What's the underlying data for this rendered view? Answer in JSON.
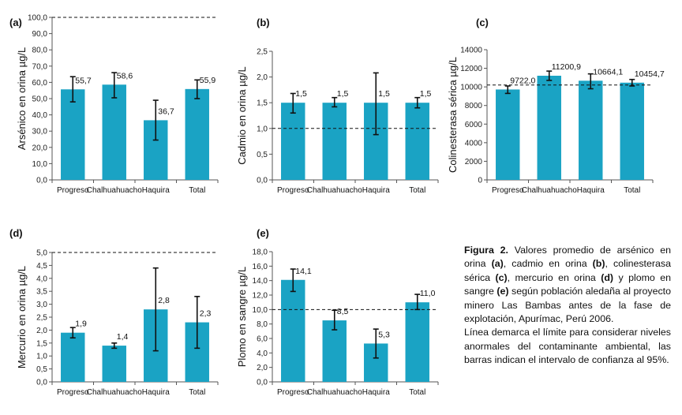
{
  "colors": {
    "bar": "#1aa3c4",
    "error": "#111111",
    "axis": "#555555",
    "limit": "#111111"
  },
  "chart_data": [
    {
      "id": "a",
      "panel_label": "(a)",
      "type": "bar",
      "categories": [
        "Progreso",
        "Chalhuahuacho",
        "Haquira",
        "Total"
      ],
      "values": [
        55.7,
        58.6,
        36.7,
        55.9
      ],
      "value_labels": [
        "55,7",
        "58,6",
        "36,7",
        "55,9"
      ],
      "err_low": [
        48.0,
        50.5,
        24.5,
        50.0
      ],
      "err_high": [
        63.5,
        66.0,
        49.0,
        61.5
      ],
      "limit": 100,
      "ylim": [
        0,
        100
      ],
      "yticks": [
        0,
        10,
        20,
        30,
        40,
        50,
        60,
        70,
        80,
        90,
        100
      ],
      "yticklabels": [
        "0,0",
        "10,0",
        "20,0",
        "30,0",
        "40,0",
        "50,0",
        "60,0",
        "70,0",
        "80,0",
        "90,0",
        "100,0"
      ],
      "ylabel": "Arsénico en orina µg/L",
      "xlabel": ""
    },
    {
      "id": "b",
      "panel_label": "(b)",
      "type": "bar",
      "categories": [
        "Progreso",
        "Chalhuahuacho",
        "Haquira",
        "Total"
      ],
      "values": [
        1.5,
        1.5,
        1.5,
        1.5
      ],
      "value_labels": [
        "1,5",
        "1,5",
        "1,5",
        "1,5"
      ],
      "err_low": [
        1.3,
        1.42,
        0.88,
        1.4
      ],
      "err_high": [
        1.68,
        1.6,
        2.08,
        1.6
      ],
      "limit": 1.0,
      "ylim": [
        0,
        2.5
      ],
      "yticks": [
        0,
        0.5,
        1.0,
        1.5,
        2.0,
        2.5
      ],
      "yticklabels": [
        "0,0",
        "0,5",
        "1,0",
        "1,5",
        "2,0",
        "2,5"
      ],
      "ylabel": "Cadmio en orina µg/L",
      "xlabel": ""
    },
    {
      "id": "c",
      "panel_label": "(c)",
      "type": "bar",
      "categories": [
        "Progreso",
        "Chalhuahuacho",
        "Haquira",
        "Total"
      ],
      "values": [
        9722.0,
        11200.9,
        10664.1,
        10454.7
      ],
      "value_labels": [
        "9722,0",
        "11200,9",
        "10664,1",
        "10454,7"
      ],
      "err_low": [
        9300,
        10700,
        9800,
        10100
      ],
      "err_high": [
        10100,
        11700,
        11400,
        10800
      ],
      "limit": 10200,
      "ylim": [
        0,
        14000
      ],
      "yticks": [
        0,
        2000,
        4000,
        6000,
        8000,
        10000,
        12000,
        14000
      ],
      "yticklabels": [
        "0",
        "2000",
        "4000",
        "6000",
        "8000",
        "10000",
        "12000",
        "14000"
      ],
      "ylabel": "Colinesterasa sérica µg/L",
      "xlabel": ""
    },
    {
      "id": "d",
      "panel_label": "(d)",
      "type": "bar",
      "categories": [
        "Progreso",
        "Chalhuahuacho",
        "Haquira",
        "Total"
      ],
      "values": [
        1.9,
        1.4,
        2.8,
        2.3
      ],
      "value_labels": [
        "1,9",
        "1,4",
        "2,8",
        "2,3"
      ],
      "err_low": [
        1.7,
        1.3,
        1.2,
        1.3
      ],
      "err_high": [
        2.1,
        1.5,
        4.4,
        3.3
      ],
      "limit": 5.0,
      "ylim": [
        0,
        5.0
      ],
      "yticks": [
        0,
        0.5,
        1.0,
        1.5,
        2.0,
        2.5,
        3.0,
        3.5,
        4.0,
        4.5,
        5.0
      ],
      "yticklabels": [
        "0,0",
        "0,5",
        "1,0",
        "1,5",
        "2,0",
        "2,5",
        "3,0",
        "3,5",
        "4,0",
        "4,5",
        "5,0"
      ],
      "ylabel": "Mercurio en orina µg/L",
      "xlabel": ""
    },
    {
      "id": "e",
      "panel_label": "(e)",
      "type": "bar",
      "categories": [
        "Progreso",
        "Chalhuahuacho",
        "Haquira",
        "Total"
      ],
      "values": [
        14.1,
        8.5,
        5.3,
        11.0
      ],
      "value_labels": [
        "14,1",
        "8,5",
        "5,3",
        "11,0"
      ],
      "err_low": [
        12.5,
        7.2,
        3.3,
        10.0
      ],
      "err_high": [
        15.6,
        9.9,
        7.3,
        12.1
      ],
      "limit": 10.0,
      "ylim": [
        0,
        18.0
      ],
      "yticks": [
        0,
        2,
        4,
        6,
        8,
        10,
        12,
        14,
        16,
        18
      ],
      "yticklabels": [
        "0,0",
        "2,0",
        "4,0",
        "6,0",
        "8,0",
        "10,0",
        "12,0",
        "14,0",
        "16,0",
        "18,0"
      ],
      "ylabel": "Plomo en sangre µg/L",
      "xlabel": ""
    }
  ],
  "caption": {
    "title": "Figura 2.",
    "t1": " Valores promedio de arsénico en orina ",
    "a": "(a)",
    "t2": ", cadmio en orina ",
    "b": "(b)",
    "t3": ", colinesterasa sérica ",
    "c": "(c)",
    "t4": ", mercurio en orina ",
    "d": "(d)",
    "t5": " y plomo en sangre ",
    "e": "(e)",
    "t6": " según población aledaña al proyecto minero Las Bambas antes de la fase de explotación, Apurímac, Perú 2006.",
    "note": "Línea demarca el límite para considerar niveles anormales del contaminante ambiental, las barras indican el intervalo de confianza al 95%."
  }
}
